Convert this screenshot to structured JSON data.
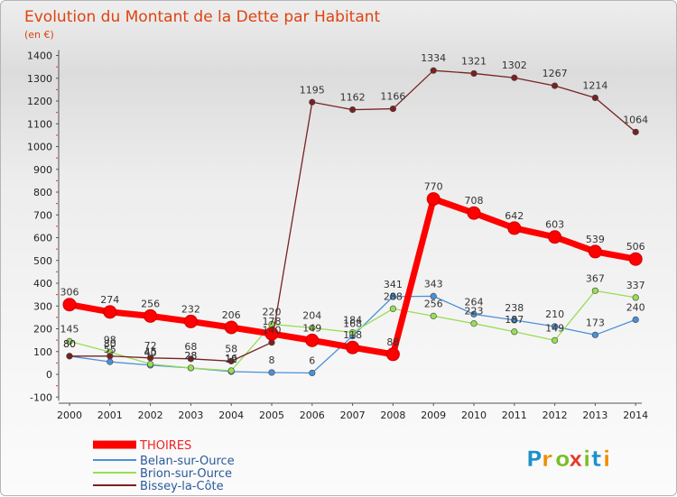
{
  "chart_data": {
    "type": "line",
    "title": "Evolution du Montant de la Dette par Habitant",
    "unit_label": "(en €)",
    "x": [
      "2000",
      "2001",
      "2002",
      "2003",
      "2004",
      "2005",
      "2006",
      "2007",
      "2008",
      "2009",
      "2010",
      "2011",
      "2012",
      "2013",
      "2014"
    ],
    "ylim": [
      -100,
      1400
    ],
    "yticks": [
      -100,
      0,
      100,
      200,
      300,
      400,
      500,
      600,
      700,
      800,
      900,
      1000,
      1100,
      1200,
      1300,
      1400
    ],
    "grid": false,
    "legend_position": "bottom-left",
    "series": [
      {
        "name": "THOIRES",
        "color": "#ff0000",
        "values": [
          306,
          274,
          256,
          232,
          206,
          178,
          149,
          118,
          88,
          770,
          708,
          642,
          603,
          539,
          506
        ]
      },
      {
        "name": "Belan-sur-Ource",
        "color": "#4a90d9",
        "values": [
          80,
          55,
          40,
          28,
          12,
          8,
          6,
          168,
          341,
          343,
          264,
          238,
          210,
          173,
          240
        ]
      },
      {
        "name": "Brion-sur-Ource",
        "color": "#99dd55",
        "values": [
          145,
          98,
          45,
          28,
          16,
          220,
          204,
          184,
          288,
          256,
          223,
          187,
          149,
          367,
          337
        ]
      },
      {
        "name": "Bissey-la-Côte",
        "color": "#772222",
        "values": [
          80,
          80,
          72,
          68,
          58,
          140,
          1195,
          1162,
          1166,
          1334,
          1321,
          1302,
          1267,
          1214,
          1064
        ]
      }
    ]
  },
  "logo": {
    "text": "Proxiti",
    "letters": [
      "P",
      "r",
      "o",
      "x",
      "i",
      "t",
      "i"
    ],
    "colors": [
      "#1e90c8",
      "#f08c00",
      "#7bbd2a",
      "#e53a2a",
      "#7bbd2a",
      "#1e90c8",
      "#f08c00"
    ]
  }
}
